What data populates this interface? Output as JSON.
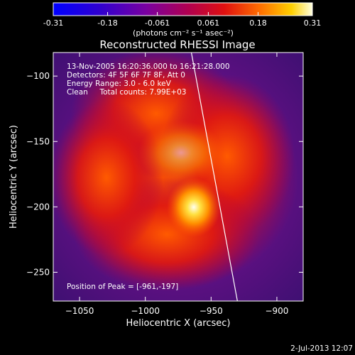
{
  "chart_data": {
    "type": "heatmap",
    "title": "Reconstructed RHESSI Image",
    "xlabel": "Heliocentric X (arcsec)",
    "ylabel": "Heliocentric Y (arcsec)",
    "xlim": [
      -1070,
      -880
    ],
    "ylim": [
      -272,
      -82
    ],
    "x_ticks": [
      -1050,
      -1000,
      -950,
      -900
    ],
    "y_ticks": [
      -100,
      -150,
      -200,
      -250
    ],
    "colorbar": {
      "range": [
        -0.31,
        0.31
      ],
      "tick_values": [
        -0.31,
        -0.18,
        -0.061,
        0.061,
        0.18,
        0.31
      ],
      "tick_labels": [
        "-0.31",
        "-0.18",
        "-0.061",
        "0.061",
        "0.18",
        "0.31"
      ],
      "units": "(photons cm⁻² s⁻¹ asec⁻²)",
      "colormap": "rainbow-blue-to-red-white"
    },
    "annotations": [
      "13-Nov-2005 16:20:36.000 to 16:21:28.000",
      "Detectors: 4F 5F 6F 7F 8F, Att 0",
      "Energy Range: 3.0 - 6.0 keV",
      "Clean     Total counts: 7.99E+03"
    ],
    "peak_label": "Position of Peak = [-961,-197]",
    "peak": {
      "x": -961,
      "y": -197
    },
    "footer_date": "2-Jul-2013 12:07",
    "limb_line": [
      {
        "x": -965,
        "y": -82
      },
      {
        "x": -930,
        "y": -272
      }
    ]
  },
  "colors": {
    "background": "#000000",
    "foreground": "#ffffff"
  }
}
